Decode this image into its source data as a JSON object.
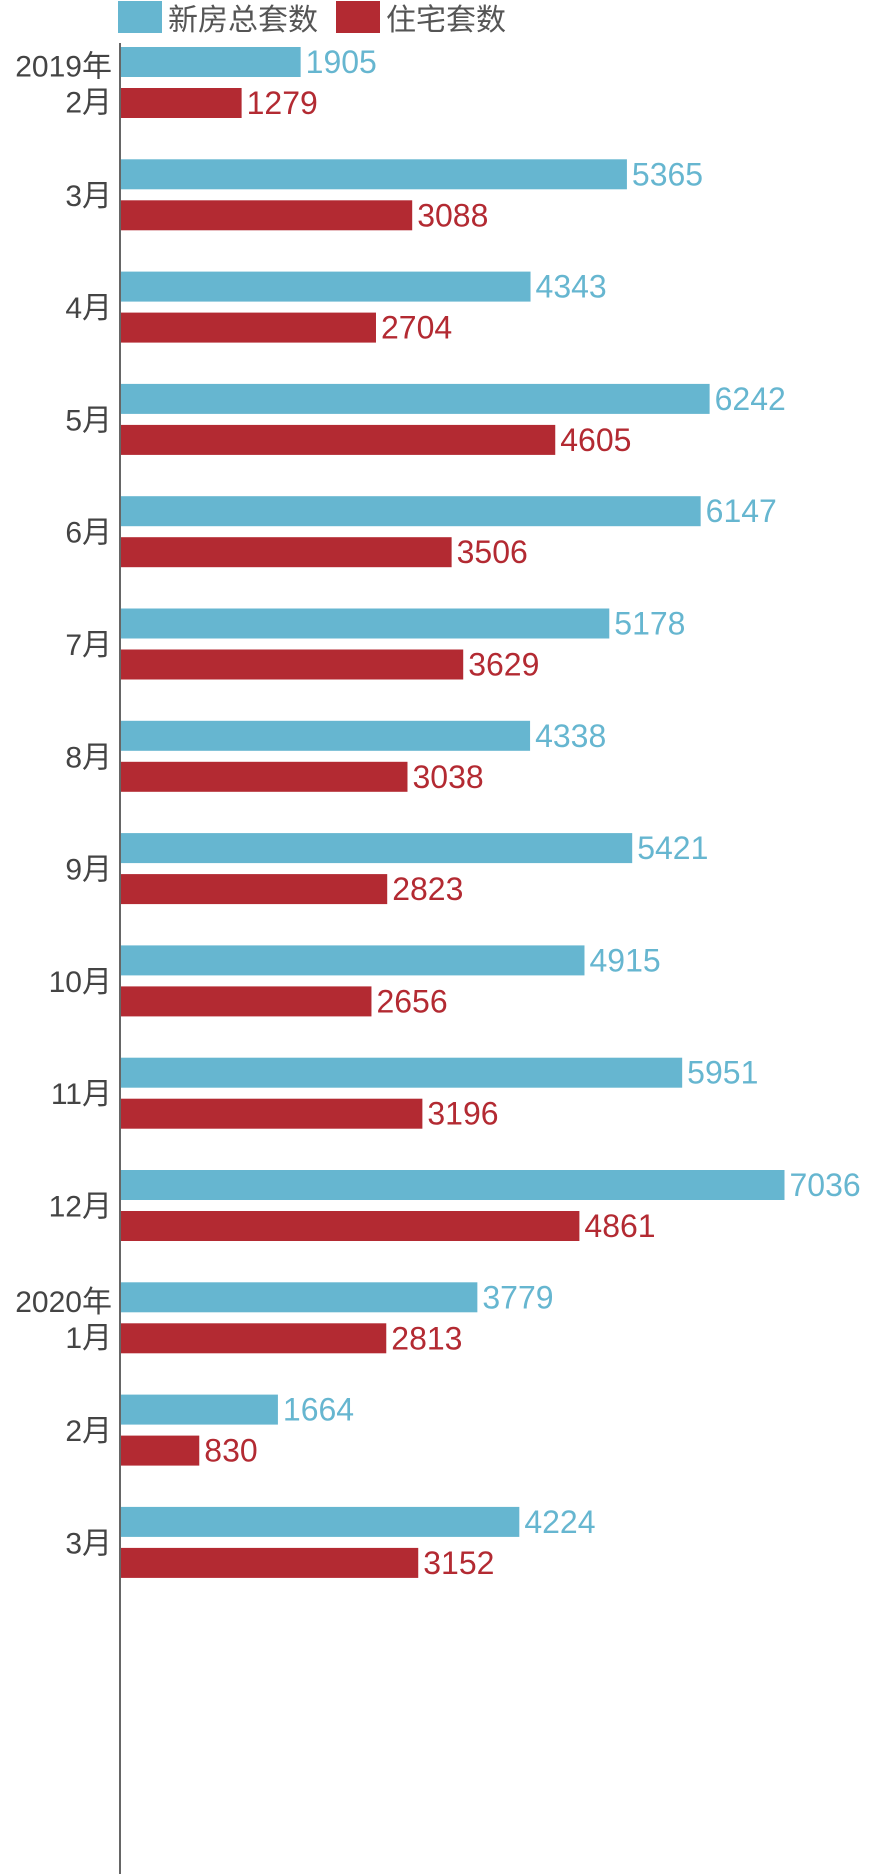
{
  "chart_data": {
    "type": "bar",
    "orientation": "horizontal",
    "title": "",
    "categories": [
      "2019年\n2月",
      "3月",
      "4月",
      "5月",
      "6月",
      "7月",
      "8月",
      "9月",
      "10月",
      "11月",
      "12月",
      "2020年\n1月",
      "2月",
      "3月"
    ],
    "series": [
      {
        "name": "新房总套数",
        "color": "#66b6d0",
        "values": [
          1905,
          5365,
          4343,
          6242,
          6147,
          5178,
          4338,
          5421,
          4915,
          5951,
          7036,
          3779,
          1664,
          4224
        ]
      },
      {
        "name": "住宅套数",
        "color": "#b32a32",
        "values": [
          1279,
          3088,
          2704,
          4605,
          3506,
          3629,
          3038,
          2823,
          2656,
          3196,
          4861,
          2813,
          830,
          3152
        ]
      }
    ],
    "xlim": [
      0,
      7036
    ],
    "legend_position": "top-left",
    "grid": false,
    "xlabel": "",
    "ylabel": ""
  }
}
